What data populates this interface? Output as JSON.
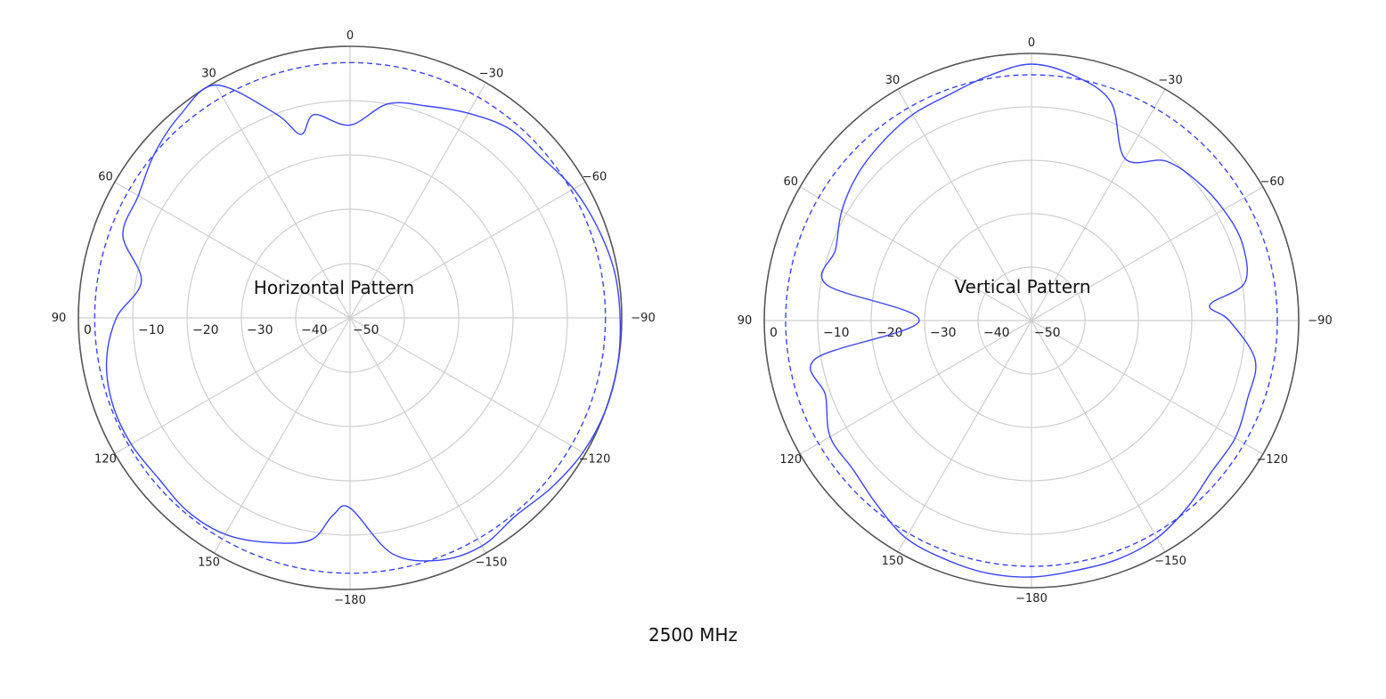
{
  "caption": "2500 MHz",
  "chart_data": [
    {
      "type": "polar",
      "title": "Horizontal Pattern",
      "angle_labels": [
        {
          "deg": 0,
          "text": "0"
        },
        {
          "deg": 30,
          "text": "30"
        },
        {
          "deg": 60,
          "text": "60"
        },
        {
          "deg": 90,
          "text": "90"
        },
        {
          "deg": 120,
          "text": "120"
        },
        {
          "deg": 150,
          "text": "150"
        },
        {
          "deg": 180,
          "text": "−180"
        },
        {
          "deg": -30,
          "text": "−30"
        },
        {
          "deg": -60,
          "text": "−60"
        },
        {
          "deg": -90,
          "text": "−90"
        },
        {
          "deg": -120,
          "text": "−120"
        },
        {
          "deg": -150,
          "text": "−150"
        }
      ],
      "radial_ticks": [
        0,
        -10,
        -20,
        -30,
        -40,
        -50
      ],
      "radial_tick_labels": [
        "0",
        "−10",
        "−20",
        "−30",
        "−40",
        "−50"
      ],
      "r_range_dB": [
        -50,
        0
      ],
      "reference_dB": -3,
      "grid": true,
      "series": [
        {
          "color": "#3a44ff",
          "angles_deg": [
            0,
            10,
            15,
            20,
            30,
            40,
            50,
            60,
            70,
            80,
            90,
            100,
            110,
            120,
            130,
            140,
            150,
            160,
            170,
            175,
            180,
            190,
            200,
            210,
            220,
            230,
            240,
            250,
            260,
            270,
            280,
            290,
            300,
            310,
            320,
            330,
            340,
            350
          ],
          "gain_dB": [
            -14.5,
            -12,
            -15,
            -10,
            -0.5,
            -1.3,
            -3,
            -5,
            -5.5,
            -11,
            -7,
            -4.5,
            -3.5,
            -3.5,
            -4,
            -3.5,
            -4,
            -6,
            -8.5,
            -13.5,
            -15,
            -6,
            -2.5,
            -1.5,
            -2.5,
            -1.5,
            -0.5,
            0,
            0,
            -0.3,
            -0.6,
            -1.5,
            -2.5,
            -4,
            -4.5,
            -6.5,
            -8.5,
            -10
          ]
        }
      ]
    },
    {
      "type": "polar",
      "title": "Vertical Pattern",
      "angle_labels": [
        {
          "deg": 0,
          "text": "0"
        },
        {
          "deg": 30,
          "text": "30"
        },
        {
          "deg": 60,
          "text": "60"
        },
        {
          "deg": 90,
          "text": "90"
        },
        {
          "deg": 120,
          "text": "120"
        },
        {
          "deg": 150,
          "text": "150"
        },
        {
          "deg": 180,
          "text": "−180"
        },
        {
          "deg": -30,
          "text": "−30"
        },
        {
          "deg": -60,
          "text": "−60"
        },
        {
          "deg": -90,
          "text": "−90"
        },
        {
          "deg": -120,
          "text": "−120"
        },
        {
          "deg": -150,
          "text": "−150"
        }
      ],
      "radial_ticks": [
        0,
        -10,
        -20,
        -30,
        -40,
        -50
      ],
      "radial_tick_labels": [
        "0",
        "−10",
        "−20",
        "−30",
        "−40",
        "−50"
      ],
      "r_range_dB": [
        -50,
        0
      ],
      "reference_dB": -4,
      "grid": true,
      "series": [
        {
          "color": "#3a44ff",
          "angles_deg": [
            0,
            10,
            20,
            30,
            40,
            50,
            60,
            70,
            80,
            90,
            100,
            110,
            120,
            130,
            140,
            150,
            160,
            170,
            180,
            190,
            200,
            210,
            220,
            230,
            240,
            250,
            260,
            270,
            275,
            280,
            290,
            300,
            310,
            320,
            330,
            340,
            350
          ],
          "gain_dB": [
            -2,
            -3.5,
            -5,
            -5.5,
            -6.5,
            -7.5,
            -9,
            -11,
            -11,
            -29,
            -9,
            -9,
            -6.5,
            -6.5,
            -5,
            -3,
            -2.5,
            -2,
            -2,
            -2.5,
            -2.5,
            -3,
            -4.5,
            -6,
            -6,
            -7,
            -7.5,
            -13,
            -16.5,
            -9.5,
            -8,
            -8.5,
            -9.5,
            -11,
            -15,
            -6.5,
            -3.5
          ]
        }
      ]
    }
  ]
}
